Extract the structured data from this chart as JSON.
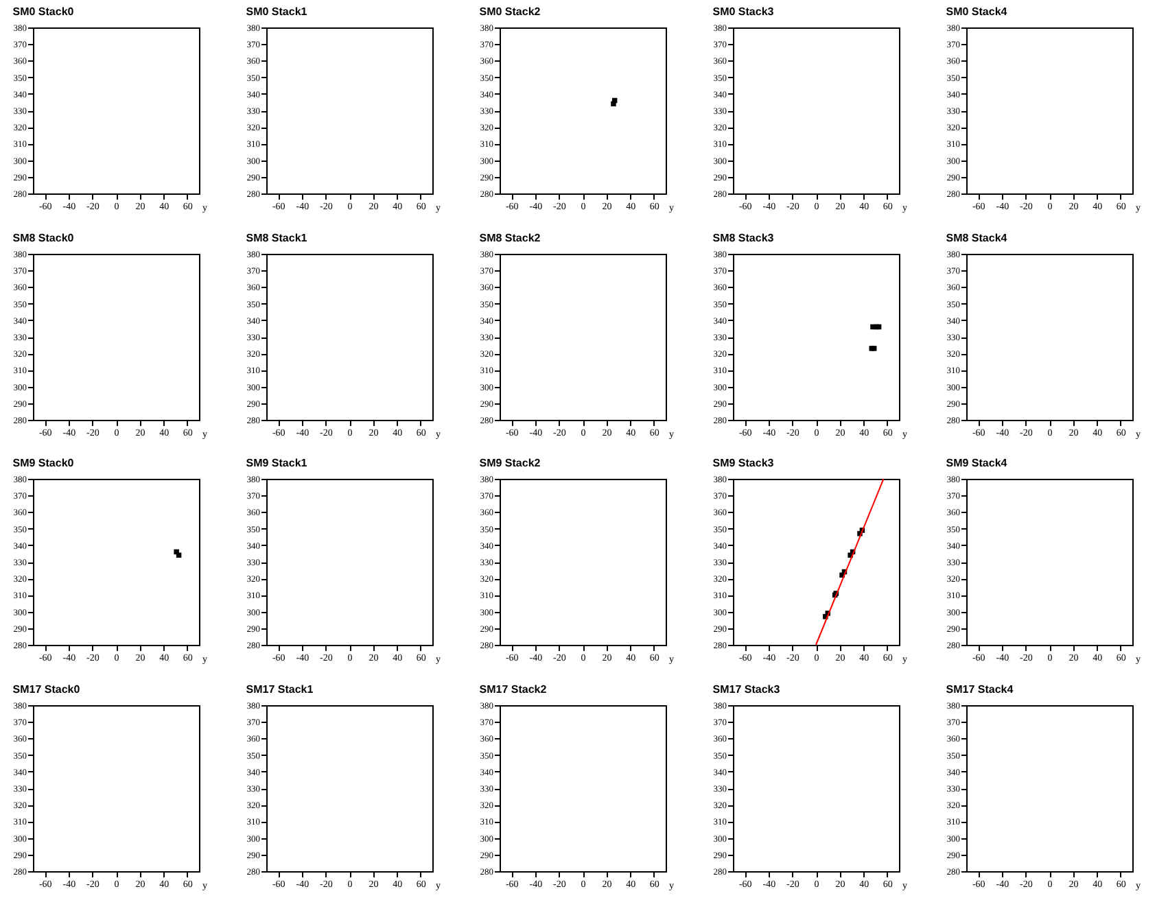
{
  "chart_data": [
    {
      "type": "scatter",
      "title": "SM0 Stack0",
      "xlabel": "y",
      "xlim": [
        -70,
        70
      ],
      "xticks": [
        -60,
        -40,
        -20,
        0,
        20,
        40,
        60
      ],
      "ylim": [
        280,
        380
      ],
      "yticks": [
        280,
        290,
        300,
        310,
        320,
        330,
        340,
        350,
        360,
        370,
        380
      ],
      "marker": "square"
    },
    {
      "type": "scatter",
      "title": "SM0 Stack1",
      "xlabel": "y",
      "xlim": [
        -70,
        70
      ],
      "xticks": [
        -60,
        -40,
        -20,
        0,
        20,
        40,
        60
      ],
      "ylim": [
        280,
        380
      ],
      "yticks": [
        280,
        290,
        300,
        310,
        320,
        330,
        340,
        350,
        360,
        370,
        380
      ],
      "marker": "square"
    },
    {
      "type": "scatter",
      "title": "SM0 Stack2",
      "xlabel": "y",
      "x": [
        26,
        27
      ],
      "values": [
        334,
        336
      ],
      "color": "#000000",
      "xlim": [
        -70,
        70
      ],
      "xticks": [
        -60,
        -40,
        -20,
        0,
        20,
        40,
        60
      ],
      "ylim": [
        280,
        380
      ],
      "yticks": [
        280,
        290,
        300,
        310,
        320,
        330,
        340,
        350,
        360,
        370,
        380
      ],
      "marker": "square"
    },
    {
      "type": "scatter",
      "title": "SM0 Stack3",
      "xlabel": "y",
      "xlim": [
        -70,
        70
      ],
      "xticks": [
        -60,
        -40,
        -20,
        0,
        20,
        40,
        60
      ],
      "ylim": [
        280,
        380
      ],
      "yticks": [
        280,
        290,
        300,
        310,
        320,
        330,
        340,
        350,
        360,
        370,
        380
      ],
      "marker": "square"
    },
    {
      "type": "scatter",
      "title": "SM0 Stack4",
      "xlabel": "y",
      "xlim": [
        -70,
        70
      ],
      "xticks": [
        -60,
        -40,
        -20,
        0,
        20,
        40,
        60
      ],
      "ylim": [
        280,
        380
      ],
      "yticks": [
        280,
        290,
        300,
        310,
        320,
        330,
        340,
        350,
        360,
        370,
        380
      ],
      "marker": "square"
    },
    {
      "type": "scatter",
      "title": "SM8 Stack0",
      "xlabel": "y",
      "xlim": [
        -70,
        70
      ],
      "xticks": [
        -60,
        -40,
        -20,
        0,
        20,
        40,
        60
      ],
      "ylim": [
        280,
        380
      ],
      "yticks": [
        280,
        290,
        300,
        310,
        320,
        330,
        340,
        350,
        360,
        370,
        380
      ],
      "marker": "square"
    },
    {
      "type": "scatter",
      "title": "SM8 Stack1",
      "xlabel": "y",
      "xlim": [
        -70,
        70
      ],
      "xticks": [
        -60,
        -40,
        -20,
        0,
        20,
        40,
        60
      ],
      "ylim": [
        280,
        380
      ],
      "yticks": [
        280,
        290,
        300,
        310,
        320,
        330,
        340,
        350,
        360,
        370,
        380
      ],
      "marker": "square"
    },
    {
      "type": "scatter",
      "title": "SM8 Stack2",
      "xlabel": "y",
      "xlim": [
        -70,
        70
      ],
      "xticks": [
        -60,
        -40,
        -20,
        0,
        20,
        40,
        60
      ],
      "ylim": [
        280,
        380
      ],
      "yticks": [
        280,
        290,
        300,
        310,
        320,
        330,
        340,
        350,
        360,
        370,
        380
      ],
      "marker": "square"
    },
    {
      "type": "scatter",
      "title": "SM8 Stack3",
      "xlabel": "y",
      "x": [
        48,
        51,
        53,
        47,
        49
      ],
      "values": [
        336,
        336,
        336,
        323,
        323
      ],
      "color": "#000000",
      "xlim": [
        -70,
        70
      ],
      "xticks": [
        -60,
        -40,
        -20,
        0,
        20,
        40,
        60
      ],
      "ylim": [
        280,
        380
      ],
      "yticks": [
        280,
        290,
        300,
        310,
        320,
        330,
        340,
        350,
        360,
        370,
        380
      ],
      "marker": "square"
    },
    {
      "type": "scatter",
      "title": "SM8 Stack4",
      "xlabel": "y",
      "xlim": [
        -70,
        70
      ],
      "xticks": [
        -60,
        -40,
        -20,
        0,
        20,
        40,
        60
      ],
      "ylim": [
        280,
        380
      ],
      "yticks": [
        280,
        290,
        300,
        310,
        320,
        330,
        340,
        350,
        360,
        370,
        380
      ],
      "marker": "square"
    },
    {
      "type": "scatter",
      "title": "SM9 Stack0",
      "xlabel": "y",
      "x": [
        51,
        53
      ],
      "values": [
        336,
        334
      ],
      "color": "#000000",
      "xlim": [
        -70,
        70
      ],
      "xticks": [
        -60,
        -40,
        -20,
        0,
        20,
        40,
        60
      ],
      "ylim": [
        280,
        380
      ],
      "yticks": [
        280,
        290,
        300,
        310,
        320,
        330,
        340,
        350,
        360,
        370,
        380
      ],
      "marker": "square"
    },
    {
      "type": "scatter",
      "title": "SM9 Stack1",
      "xlabel": "y",
      "xlim": [
        -70,
        70
      ],
      "xticks": [
        -60,
        -40,
        -20,
        0,
        20,
        40,
        60
      ],
      "ylim": [
        280,
        380
      ],
      "yticks": [
        280,
        290,
        300,
        310,
        320,
        330,
        340,
        350,
        360,
        370,
        380
      ],
      "marker": "square"
    },
    {
      "type": "scatter",
      "title": "SM9 Stack2",
      "xlabel": "y",
      "xlim": [
        -70,
        70
      ],
      "xticks": [
        -60,
        -40,
        -20,
        0,
        20,
        40,
        60
      ],
      "ylim": [
        280,
        380
      ],
      "yticks": [
        280,
        290,
        300,
        310,
        320,
        330,
        340,
        350,
        360,
        370,
        380
      ],
      "marker": "square"
    },
    {
      "type": "scatter",
      "title": "SM9 Stack3",
      "xlabel": "y",
      "series": [
        {
          "type": "scatter",
          "color": "#000000",
          "marker": "square",
          "x": [
            8,
            10,
            16,
            17,
            22,
            24,
            29,
            31,
            37,
            39
          ],
          "values": [
            297,
            299,
            310,
            311,
            322,
            324,
            334,
            336,
            347,
            349
          ]
        },
        {
          "type": "line",
          "color": "#ff0000",
          "x": [
            0,
            57
          ],
          "values": [
            280,
            380
          ]
        }
      ],
      "xlim": [
        -70,
        70
      ],
      "xticks": [
        -60,
        -40,
        -20,
        0,
        20,
        40,
        60
      ],
      "ylim": [
        280,
        380
      ],
      "yticks": [
        280,
        290,
        300,
        310,
        320,
        330,
        340,
        350,
        360,
        370,
        380
      ]
    },
    {
      "type": "scatter",
      "title": "SM9 Stack4",
      "xlabel": "y",
      "xlim": [
        -70,
        70
      ],
      "xticks": [
        -60,
        -40,
        -20,
        0,
        20,
        40,
        60
      ],
      "ylim": [
        280,
        380
      ],
      "yticks": [
        280,
        290,
        300,
        310,
        320,
        330,
        340,
        350,
        360,
        370,
        380
      ],
      "marker": "square"
    },
    {
      "type": "scatter",
      "title": "SM17 Stack0",
      "xlabel": "y",
      "xlim": [
        -70,
        70
      ],
      "xticks": [
        -60,
        -40,
        -20,
        0,
        20,
        40,
        60
      ],
      "ylim": [
        280,
        380
      ],
      "yticks": [
        280,
        290,
        300,
        310,
        320,
        330,
        340,
        350,
        360,
        370,
        380
      ],
      "marker": "square"
    },
    {
      "type": "scatter",
      "title": "SM17 Stack1",
      "xlabel": "y",
      "xlim": [
        -70,
        70
      ],
      "xticks": [
        -60,
        -40,
        -20,
        0,
        20,
        40,
        60
      ],
      "ylim": [
        280,
        380
      ],
      "yticks": [
        280,
        290,
        300,
        310,
        320,
        330,
        340,
        350,
        360,
        370,
        380
      ],
      "marker": "square"
    },
    {
      "type": "scatter",
      "title": "SM17 Stack2",
      "xlabel": "y",
      "xlim": [
        -70,
        70
      ],
      "xticks": [
        -60,
        -40,
        -20,
        0,
        20,
        40,
        60
      ],
      "ylim": [
        280,
        380
      ],
      "yticks": [
        280,
        290,
        300,
        310,
        320,
        330,
        340,
        350,
        360,
        370,
        380
      ],
      "marker": "square"
    },
    {
      "type": "scatter",
      "title": "SM17 Stack3",
      "xlabel": "y",
      "xlim": [
        -70,
        70
      ],
      "xticks": [
        -60,
        -40,
        -20,
        0,
        20,
        40,
        60
      ],
      "ylim": [
        280,
        380
      ],
      "yticks": [
        280,
        290,
        300,
        310,
        320,
        330,
        340,
        350,
        360,
        370,
        380
      ],
      "marker": "square"
    },
    {
      "type": "scatter",
      "title": "SM17 Stack4",
      "xlabel": "y",
      "xlim": [
        -70,
        70
      ],
      "xticks": [
        -60,
        -40,
        -20,
        0,
        20,
        40,
        60
      ],
      "ylim": [
        280,
        380
      ],
      "yticks": [
        280,
        290,
        300,
        310,
        320,
        330,
        340,
        350,
        360,
        370,
        380
      ],
      "marker": "square"
    }
  ]
}
